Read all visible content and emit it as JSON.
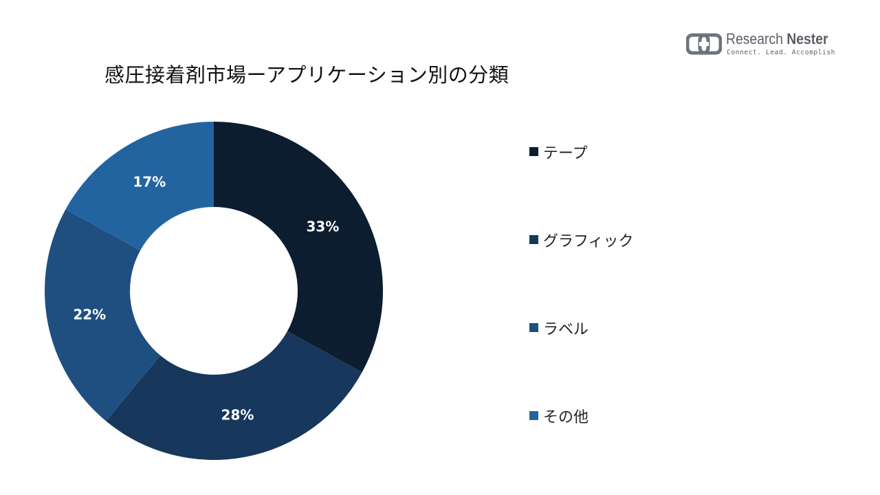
{
  "chart_data": {
    "type": "pie",
    "variant": "donut",
    "title": "感圧接着剤市場ーアプリケーション別の分類",
    "categories": [
      "テープ",
      "グラフィック",
      "ラベル",
      "その他"
    ],
    "values": [
      33,
      28,
      22,
      17
    ],
    "value_labels": [
      "33%",
      "28%",
      "22%",
      "17%"
    ],
    "colors": [
      "#0c1d30",
      "#17375c",
      "#1e4f80",
      "#2264a0"
    ],
    "legend_position": "right",
    "start_angle": "12 o'clock, clockwise"
  },
  "logo": {
    "name_a": "Research",
    "name_b": "Nester",
    "tagline": "Connect. Lead. Accomplish"
  }
}
